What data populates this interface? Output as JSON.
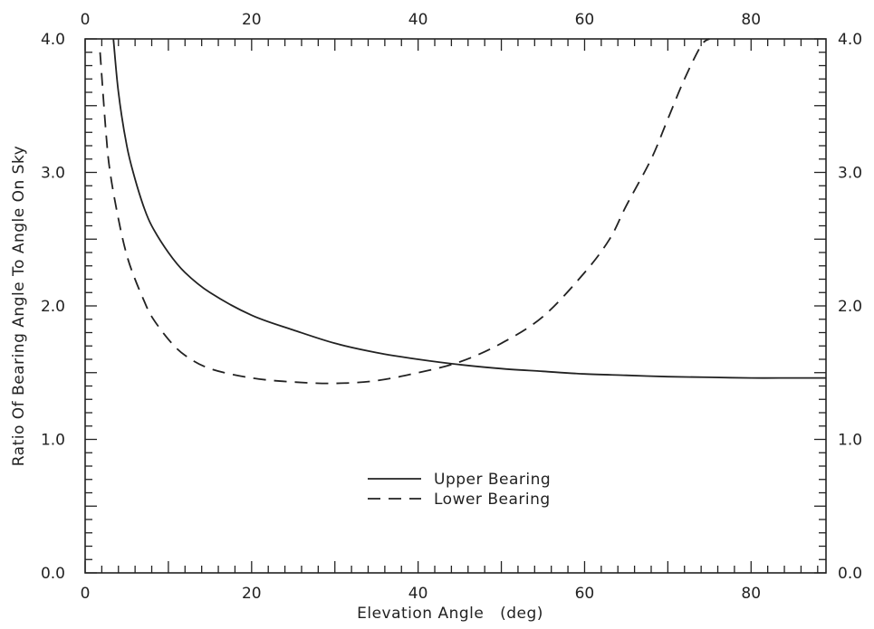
{
  "chart_data": {
    "type": "line",
    "title": "",
    "xlabel": "Elevation Angle   (deg)",
    "ylabel": "Ratio Of Bearing Angle To Angle On Sky",
    "xlim": [
      0,
      89
    ],
    "ylim": [
      0,
      4
    ],
    "x_ticks": [
      0,
      20,
      40,
      60,
      80
    ],
    "x_tick_labels": [
      "0",
      "20",
      "40",
      "60",
      "80"
    ],
    "y_ticks": [
      0,
      1,
      2,
      3,
      4
    ],
    "y_tick_labels": [
      "0.0",
      "1.0",
      "2.0",
      "3.0",
      "4.0"
    ],
    "top_axis_tick_labels": [
      "0",
      "20",
      "40",
      "60",
      "80"
    ],
    "right_axis_tick_labels": [
      "0.0",
      "1.0",
      "2.0",
      "3.0",
      "4.0"
    ],
    "grid": false,
    "legend_position": "bottom-center",
    "series": [
      {
        "name": "Upper Bearing",
        "style": "solid",
        "color": "#222222",
        "x": [
          3.4,
          4,
          5,
          6,
          7,
          8,
          10,
          12,
          15,
          20,
          25,
          30,
          35,
          40,
          45,
          50,
          55,
          60,
          65,
          70,
          75,
          80,
          85,
          89
        ],
        "y": [
          4.0,
          3.6,
          3.2,
          2.95,
          2.75,
          2.6,
          2.4,
          2.25,
          2.1,
          1.93,
          1.82,
          1.72,
          1.65,
          1.6,
          1.56,
          1.53,
          1.51,
          1.49,
          1.48,
          1.47,
          1.465,
          1.46,
          1.46,
          1.46
        ]
      },
      {
        "name": "Lower Bearing",
        "style": "dashed",
        "color": "#222222",
        "x": [
          1.8,
          2.5,
          3,
          4,
          5,
          6,
          7,
          8,
          10,
          12,
          15,
          20,
          25,
          30,
          35,
          40,
          45,
          50,
          55,
          60,
          63,
          65,
          68,
          70,
          72,
          74,
          75
        ],
        "y": [
          3.9,
          3.3,
          3.0,
          2.65,
          2.38,
          2.2,
          2.05,
          1.92,
          1.75,
          1.63,
          1.53,
          1.46,
          1.43,
          1.42,
          1.44,
          1.5,
          1.58,
          1.72,
          1.92,
          2.25,
          2.5,
          2.75,
          3.1,
          3.4,
          3.7,
          3.95,
          4.0
        ]
      }
    ]
  }
}
